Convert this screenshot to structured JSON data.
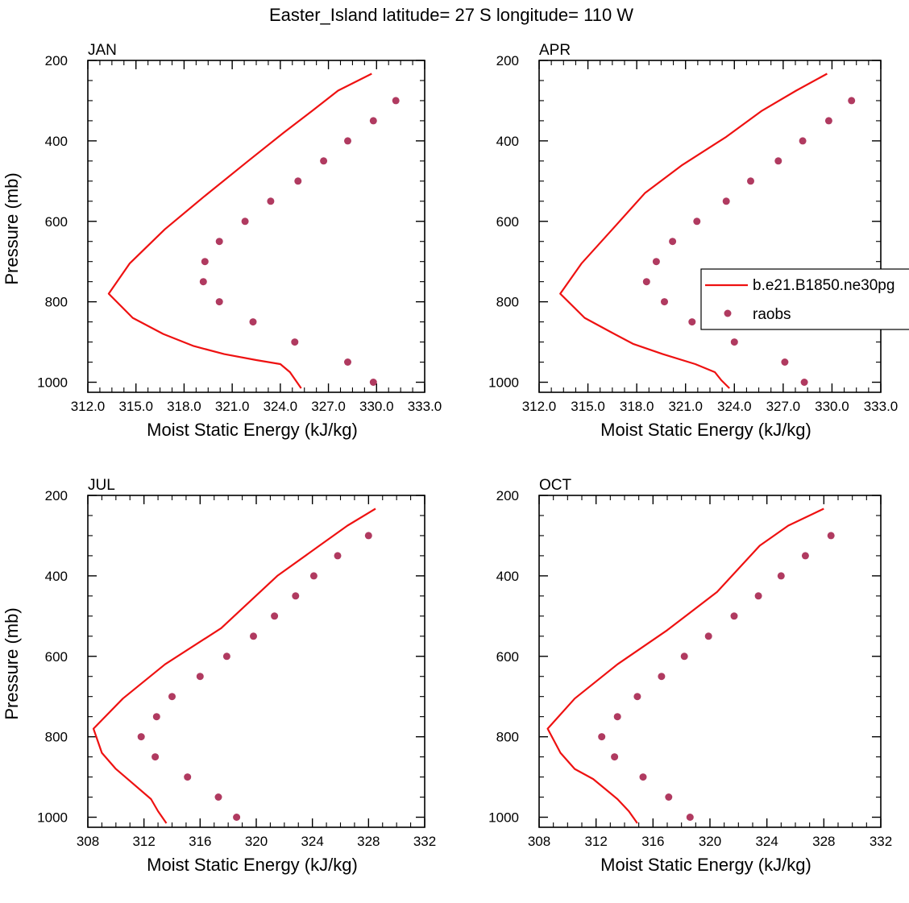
{
  "title": "Easter_Island  latitude= 27 S longitude= 110 W",
  "colors": {
    "model_line": "#ee1111",
    "obs_marker": "#b03a60",
    "axis": "#000000"
  },
  "legend": {
    "entries": [
      {
        "label": "b.e21.B1850.ne30pg",
        "style": "line",
        "color": "#ee1111"
      },
      {
        "label": "raobs",
        "style": "marker",
        "color": "#b03a60"
      }
    ]
  },
  "chart_data": [
    {
      "type": "line",
      "panel_label": "JAN",
      "xlabel": "Moist Static Energy (kJ/kg)",
      "ylabel": "Pressure (mb)",
      "xlim": [
        312,
        333
      ],
      "ylim": [
        200,
        1025
      ],
      "y_reversed": true,
      "xticks": [
        "312.0",
        "315.0",
        "318.0",
        "321.0",
        "324.0",
        "327.0",
        "330.0",
        "333.0"
      ],
      "yticks": [
        "200",
        "400",
        "600",
        "800",
        "1000"
      ],
      "series": [
        {
          "name": "b.e21.B1850.ne30pg",
          "style": "line",
          "x": [
            329.7,
            327.6,
            326.0,
            324.2,
            322.0,
            319.2,
            316.8,
            314.6,
            313.3,
            314.8,
            316.7,
            318.6,
            320.5,
            322.5,
            324.0,
            324.6,
            325.3
          ],
          "y": [
            233,
            275,
            325,
            380,
            450,
            540,
            620,
            705,
            780,
            840,
            880,
            910,
            930,
            945,
            955,
            975,
            1015
          ]
        },
        {
          "name": "raobs",
          "style": "marker",
          "x": [
            331.2,
            329.8,
            328.2,
            326.7,
            325.1,
            323.4,
            321.8,
            320.2,
            319.3,
            319.2,
            320.2,
            322.3,
            324.9,
            328.2,
            329.8
          ],
          "y": [
            300,
            350,
            400,
            450,
            500,
            550,
            600,
            650,
            700,
            750,
            800,
            850,
            900,
            950,
            1000
          ]
        }
      ]
    },
    {
      "type": "line",
      "panel_label": "APR",
      "xlabel": "Moist Static Energy (kJ/kg)",
      "ylabel": "",
      "xlim": [
        312,
        333
      ],
      "ylim": [
        200,
        1025
      ],
      "y_reversed": true,
      "xticks": [
        "312.0",
        "315.0",
        "318.0",
        "321.0",
        "324.0",
        "327.0",
        "330.0",
        "333.0"
      ],
      "yticks": [
        "200",
        "400",
        "600",
        "800",
        "1000"
      ],
      "series": [
        {
          "name": "b.e21.B1850.ne30pg",
          "style": "line",
          "x": [
            329.7,
            327.8,
            325.7,
            323.5,
            320.8,
            318.5,
            316.5,
            314.6,
            313.3,
            314.8,
            316.4,
            317.8,
            319.6,
            321.6,
            322.8,
            323.2,
            323.7
          ],
          "y": [
            233,
            275,
            325,
            390,
            460,
            530,
            620,
            705,
            780,
            840,
            875,
            905,
            930,
            955,
            975,
            995,
            1015
          ]
        },
        {
          "name": "raobs",
          "style": "marker",
          "x": [
            331.2,
            329.8,
            328.2,
            326.7,
            325.0,
            323.5,
            321.7,
            320.2,
            319.2,
            318.6,
            319.7,
            321.4,
            324.0,
            327.1,
            328.3
          ],
          "y": [
            300,
            350,
            400,
            450,
            500,
            550,
            600,
            650,
            700,
            750,
            800,
            850,
            900,
            950,
            1000
          ]
        }
      ]
    },
    {
      "type": "line",
      "panel_label": "JUL",
      "xlabel": "Moist Static Energy (kJ/kg)",
      "ylabel": "Pressure (mb)",
      "xlim": [
        308,
        332
      ],
      "ylim": [
        200,
        1025
      ],
      "y_reversed": true,
      "xticks": [
        "308",
        "312",
        "316",
        "320",
        "324",
        "328",
        "332"
      ],
      "yticks": [
        "200",
        "400",
        "600",
        "800",
        "1000"
      ],
      "series": [
        {
          "name": "b.e21.B1850.ne30pg",
          "style": "line",
          "x": [
            328.5,
            326.5,
            324.5,
            321.5,
            317.5,
            313.5,
            310.5,
            308.4,
            309.0,
            310.0,
            311.0,
            312.5,
            313.0,
            313.6
          ],
          "y": [
            233,
            275,
            325,
            400,
            530,
            620,
            705,
            780,
            840,
            880,
            910,
            955,
            985,
            1015
          ]
        },
        {
          "name": "raobs",
          "style": "marker",
          "x": [
            328.0,
            325.8,
            324.1,
            322.8,
            321.3,
            319.8,
            317.9,
            316.0,
            314.0,
            312.9,
            311.8,
            312.8,
            315.1,
            317.3,
            318.6
          ],
          "y": [
            300,
            350,
            400,
            450,
            500,
            550,
            600,
            650,
            700,
            750,
            800,
            850,
            900,
            950,
            1000
          ]
        }
      ]
    },
    {
      "type": "line",
      "panel_label": "OCT",
      "xlabel": "Moist Static Energy (kJ/kg)",
      "ylabel": "",
      "xlim": [
        308,
        332
      ],
      "ylim": [
        200,
        1025
      ],
      "y_reversed": true,
      "xticks": [
        "308",
        "312",
        "316",
        "320",
        "324",
        "328",
        "332"
      ],
      "yticks": [
        "200",
        "400",
        "600",
        "800",
        "1000"
      ],
      "series": [
        {
          "name": "b.e21.B1850.ne30pg",
          "style": "line",
          "x": [
            328.0,
            325.5,
            323.5,
            320.5,
            317.0,
            313.5,
            310.5,
            308.6,
            309.5,
            310.5,
            311.8,
            313.5,
            314.3,
            314.9
          ],
          "y": [
            233,
            275,
            325,
            440,
            535,
            620,
            705,
            780,
            840,
            880,
            905,
            955,
            985,
            1015
          ]
        },
        {
          "name": "raobs",
          "style": "marker",
          "x": [
            328.5,
            326.7,
            325.0,
            323.4,
            321.7,
            319.9,
            318.2,
            316.6,
            314.9,
            313.5,
            312.4,
            313.3,
            315.3,
            317.1,
            318.6
          ],
          "y": [
            300,
            350,
            400,
            450,
            500,
            550,
            600,
            650,
            700,
            750,
            800,
            850,
            900,
            950,
            1000
          ]
        }
      ]
    }
  ]
}
